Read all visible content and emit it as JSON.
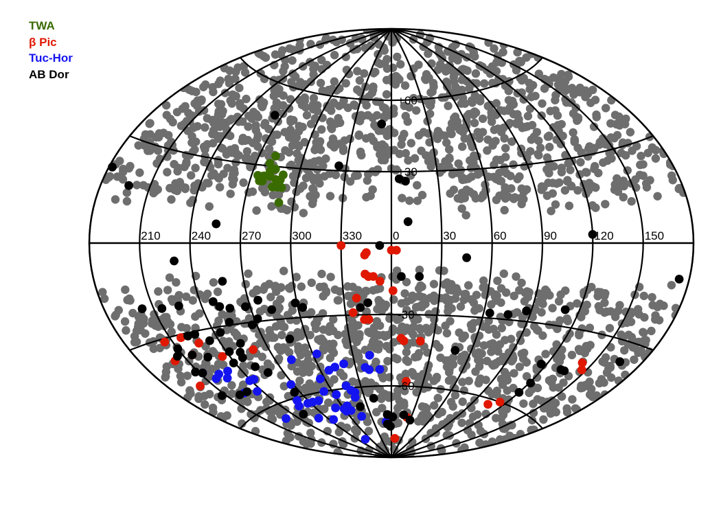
{
  "chart_data": {
    "type": "scatter",
    "projection": "Aitoff all-sky, galactic coordinates",
    "x_ticks": [
      "210",
      "240",
      "270",
      "300",
      "330",
      "0",
      "30",
      "60",
      "90",
      "120",
      "150"
    ],
    "y_ticks": [
      "+60",
      "+30",
      "-30",
      "-60"
    ],
    "grid": true,
    "legend_position": "top-left",
    "colors": {
      "field": "#6e6e6e",
      "TWA": "#3a6b00",
      "beta_pic": "#e01800",
      "tuc_hor": "#1414f0",
      "ab_dor": "#000000"
    },
    "series": [
      {
        "name": "TWA",
        "color": "#3a6b00",
        "points": [
          [
            -79,
            28
          ],
          [
            -76,
            29
          ],
          [
            -81,
            31
          ],
          [
            -79,
            34
          ],
          [
            -84,
            24
          ],
          [
            -86,
            26
          ],
          [
            -82,
            24
          ],
          [
            -78,
            26
          ],
          [
            -74,
            25
          ],
          [
            -71,
            25
          ],
          [
            -69,
            22
          ],
          [
            -70,
            27
          ],
          [
            -69,
            16
          ],
          [
            -72,
            22
          ],
          [
            -82,
            26
          ],
          [
            -75,
            22
          ]
        ]
      },
      {
        "name": "β Pic",
        "color": "#e01800",
        "points": [
          [
            -30,
            -1
          ],
          [
            -15,
            -4
          ],
          [
            -16,
            -5
          ],
          [
            0,
            -3
          ],
          [
            3,
            -3
          ],
          [
            -16,
            -13
          ],
          [
            -14,
            -14
          ],
          [
            -11,
            -14
          ],
          [
            -7,
            -16
          ],
          [
            1,
            -20
          ],
          [
            -22,
            -23
          ],
          [
            -25,
            -29
          ],
          [
            -18,
            -32
          ],
          [
            -15,
            -32
          ],
          [
            -155,
            -31
          ],
          [
            -143,
            -31
          ],
          [
            -158,
            -37
          ],
          [
            -144,
            -37
          ],
          [
            -134,
            -34
          ],
          [
            -159,
            -46
          ],
          [
            -125,
            -40
          ],
          [
            -101,
            -40
          ],
          [
            7,
            -40
          ],
          [
            9,
            -41
          ],
          [
            21,
            -41
          ],
          [
            143,
            -40
          ],
          [
            147,
            -42
          ],
          [
            14,
            -58
          ],
          [
            106,
            -62
          ],
          [
            114,
            -60
          ],
          [
            10,
            -82
          ],
          [
            24,
            -73
          ]
        ]
      },
      {
        "name": "Tuc-Hor",
        "color": "#1414f0",
        "points": [
          [
            -148,
            -43
          ],
          [
            -138,
            -45
          ],
          [
            -130,
            -45
          ],
          [
            -143,
            -46
          ],
          [
            -135,
            -47
          ],
          [
            -121,
            -50
          ],
          [
            -135,
            -53
          ],
          [
            -124,
            -54
          ],
          [
            -117,
            -50
          ],
          [
            -92,
            -55
          ],
          [
            -78,
            -46
          ],
          [
            -57,
            -45
          ],
          [
            -64,
            -55
          ],
          [
            -53,
            -52
          ],
          [
            -47,
            -51
          ],
          [
            -39,
            -50
          ],
          [
            -17,
            -47
          ],
          [
            -22,
            -52
          ],
          [
            -19,
            -53
          ],
          [
            -10,
            -53
          ],
          [
            -104,
            -63
          ],
          [
            -100,
            -61
          ],
          [
            -93,
            -63
          ],
          [
            -87,
            -63
          ],
          [
            -80,
            -63
          ],
          [
            -68,
            -60
          ],
          [
            -58,
            -62
          ],
          [
            -44,
            -59
          ],
          [
            -41,
            -61
          ],
          [
            -38,
            -62
          ],
          [
            -40,
            -64
          ],
          [
            -54,
            -67
          ],
          [
            -69,
            -67
          ],
          [
            -59,
            -69
          ],
          [
            -53,
            -69
          ],
          [
            -44,
            -72
          ],
          [
            -100,
            -69
          ],
          [
            -132,
            -65
          ],
          [
            -9,
            -75
          ],
          [
            -73,
            -81
          ],
          [
            -85,
            -71
          ],
          [
            -60,
            -68
          ]
        ]
      },
      {
        "name": "AB Dor",
        "color": "#000000",
        "points": [
          [
            -96,
            49
          ],
          [
            -8,
            50
          ],
          [
            -178,
            21
          ],
          [
            -163,
            17
          ],
          [
            -35,
            32
          ],
          [
            5,
            27
          ],
          [
            9,
            26
          ],
          [
            -105,
            7
          ],
          [
            10,
            9
          ],
          [
            120,
            3
          ],
          [
            -7,
            -1
          ],
          [
            45,
            -6
          ],
          [
            174,
            -10
          ],
          [
            -130,
            -6
          ],
          [
            -103,
            -14
          ],
          [
            6,
            -14
          ],
          [
            17,
            -14
          ],
          [
            -157,
            -20
          ],
          [
            -145,
            -21
          ],
          [
            -134,
            -21
          ],
          [
            -112,
            -21
          ],
          [
            -109,
            -23
          ],
          [
            -103,
            -24
          ],
          [
            -93,
            -24
          ],
          [
            -84,
            -22
          ],
          [
            -77,
            -26
          ],
          [
            -61,
            -24
          ],
          [
            -57,
            -26
          ],
          [
            -20,
            -27
          ],
          [
            -15,
            -25
          ],
          [
            -88,
            -29
          ],
          [
            -93,
            -31
          ],
          [
            -107,
            -29
          ],
          [
            -116,
            -32
          ],
          [
            -126,
            -34
          ],
          [
            -133,
            -31
          ],
          [
            -138,
            -31
          ],
          [
            -150,
            -34
          ],
          [
            -154,
            -36
          ],
          [
            -144,
            -37
          ],
          [
            -135,
            -39
          ],
          [
            -118,
            -39
          ],
          [
            -111,
            -40
          ],
          [
            -107,
            -37
          ],
          [
            -72,
            -38
          ],
          [
            -148,
            -43
          ],
          [
            -152,
            -42
          ],
          [
            -121,
            -43
          ],
          [
            -112,
            -42
          ],
          [
            -108,
            -46
          ],
          [
            -102,
            -49
          ],
          [
            64,
            -28
          ],
          [
            76,
            -28
          ],
          [
            87,
            -26
          ],
          [
            111,
            -24
          ],
          [
            166,
            -36
          ],
          [
            116,
            -44
          ],
          [
            136,
            -44
          ],
          [
            133,
            -44
          ],
          [
            48,
            -44
          ],
          [
            121,
            -51
          ],
          [
            120,
            -55
          ],
          [
            -153,
            -51
          ],
          [
            -140,
            -53
          ],
          [
            -132,
            -53
          ],
          [
            -110,
            -66
          ],
          [
            -95,
            -58
          ],
          [
            -20,
            -65
          ],
          [
            -39,
            -68
          ],
          [
            -6,
            -72
          ],
          [
            2,
            -73
          ],
          [
            -7,
            -76
          ],
          [
            -2,
            -77
          ],
          [
            18,
            -72
          ],
          [
            30,
            -74
          ]
        ]
      }
    ]
  },
  "legend": {
    "twa": "TWA",
    "beta_pic": "β Pic",
    "tuc_hor": "Tuc-Hor",
    "ab_dor": "AB Dor"
  }
}
